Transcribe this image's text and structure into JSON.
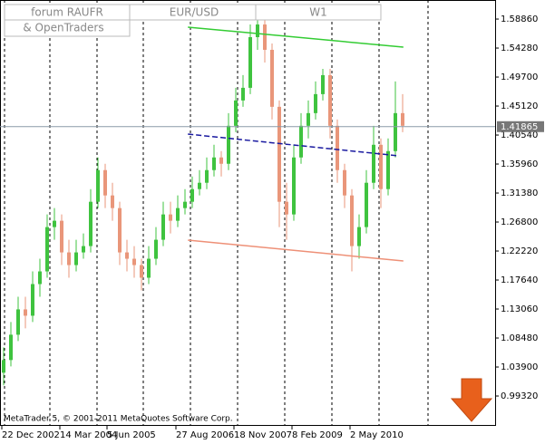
{
  "chart_data": {
    "type": "candlestick",
    "header_lines": [
      "forum RAUFR",
      "& OpenTraders"
    ],
    "symbol": "EUR/USD",
    "timeframe": "W1",
    "footer": "MetaTrader 5, © 2001-2011 MetaQuotes Software Corp.",
    "up_color": "#3fc33f",
    "down_color": "#e9967a",
    "open": [
      1.03,
      1.05,
      1.09,
      1.13,
      1.12,
      1.17,
      1.19,
      1.26,
      1.27,
      1.22,
      1.2,
      1.22,
      1.23,
      1.3,
      1.35,
      1.31,
      1.29,
      1.22,
      1.21,
      1.2,
      1.18,
      1.21,
      1.24,
      1.28,
      1.27,
      1.29,
      1.3,
      1.32,
      1.33,
      1.35,
      1.37,
      1.36,
      1.42,
      1.46,
      1.48,
      1.56,
      1.58,
      1.54,
      1.45,
      1.3,
      1.28,
      1.37,
      1.42,
      1.44,
      1.47,
      1.5,
      1.42,
      1.35,
      1.31,
      1.23,
      1.26,
      1.33,
      1.39,
      1.32,
      1.38,
      1.44
    ],
    "high": [
      1.07,
      1.11,
      1.15,
      1.15,
      1.19,
      1.21,
      1.28,
      1.29,
      1.28,
      1.24,
      1.24,
      1.25,
      1.32,
      1.37,
      1.36,
      1.33,
      1.3,
      1.24,
      1.23,
      1.21,
      1.23,
      1.26,
      1.3,
      1.3,
      1.31,
      1.32,
      1.34,
      1.35,
      1.37,
      1.39,
      1.38,
      1.44,
      1.48,
      1.5,
      1.58,
      1.6,
      1.59,
      1.55,
      1.46,
      1.33,
      1.39,
      1.44,
      1.46,
      1.49,
      1.51,
      1.51,
      1.43,
      1.36,
      1.32,
      1.28,
      1.35,
      1.42,
      1.4,
      1.4,
      1.49,
      1.47
    ],
    "low": [
      1.01,
      1.04,
      1.08,
      1.1,
      1.11,
      1.15,
      1.18,
      1.24,
      1.2,
      1.18,
      1.19,
      1.21,
      1.22,
      1.29,
      1.29,
      1.27,
      1.2,
      1.19,
      1.18,
      1.16,
      1.17,
      1.2,
      1.23,
      1.25,
      1.26,
      1.28,
      1.29,
      1.31,
      1.32,
      1.34,
      1.34,
      1.35,
      1.41,
      1.45,
      1.47,
      1.54,
      1.52,
      1.43,
      1.26,
      1.24,
      1.27,
      1.36,
      1.4,
      1.43,
      1.46,
      1.4,
      1.33,
      1.29,
      1.19,
      1.21,
      1.25,
      1.32,
      1.29,
      1.31,
      1.37,
      1.41
    ],
    "close": [
      1.05,
      1.09,
      1.13,
      1.12,
      1.17,
      1.19,
      1.26,
      1.27,
      1.22,
      1.2,
      1.22,
      1.23,
      1.3,
      1.35,
      1.31,
      1.29,
      1.22,
      1.21,
      1.2,
      1.18,
      1.21,
      1.24,
      1.28,
      1.27,
      1.29,
      1.3,
      1.32,
      1.33,
      1.35,
      1.37,
      1.36,
      1.42,
      1.46,
      1.48,
      1.56,
      1.58,
      1.54,
      1.45,
      1.3,
      1.28,
      1.37,
      1.42,
      1.44,
      1.47,
      1.5,
      1.42,
      1.35,
      1.31,
      1.23,
      1.26,
      1.33,
      1.39,
      1.32,
      1.38,
      1.44,
      1.42
    ],
    "xlim": [
      0,
      68.25
    ],
    "xticks": [
      {
        "value": 0,
        "label": "22 Dec 2002"
      },
      {
        "value": 8,
        "label": "14 Mar 2004"
      },
      {
        "value": 14.5,
        "label": "5 Jun 2005"
      },
      {
        "value": 24,
        "label": "27 Aug 2006"
      },
      {
        "value": 32,
        "label": "18 Nov 2007"
      },
      {
        "value": 40,
        "label": "8 Feb 2009"
      },
      {
        "value": 48,
        "label": "2 May 2010"
      }
    ],
    "ylim": [
      0.946,
      1.6187
    ],
    "yticks": [
      {
        "value": 1.5886,
        "label": "1.58860"
      },
      {
        "value": 1.5428,
        "label": "1.54280"
      },
      {
        "value": 1.497,
        "label": "1.49700"
      },
      {
        "value": 1.4512,
        "label": "1.45120"
      },
      {
        "value": 1.4054,
        "label": "1.40540"
      },
      {
        "value": 1.3596,
        "label": "1.35960"
      },
      {
        "value": 1.3138,
        "label": "1.31380"
      },
      {
        "value": 1.268,
        "label": "1.26800"
      },
      {
        "value": 1.2222,
        "label": "1.22220"
      },
      {
        "value": 1.1764,
        "label": "1.17640"
      },
      {
        "value": 1.1306,
        "label": "1.13060"
      },
      {
        "value": 1.0848,
        "label": "1.08480"
      },
      {
        "value": 1.039,
        "label": "1.03900"
      },
      {
        "value": 0.9932,
        "label": "0.99320"
      }
    ],
    "current_price": {
      "value": 1.41865,
      "label": "1.41865"
    },
    "trendlines": [
      {
        "color": "#33cc33",
        "dashed": false,
        "x": [
          25.9,
          55.6
        ],
        "y": [
          1.5758,
          1.5443
        ]
      },
      {
        "color": "#1a1aa0",
        "dashed": true,
        "x": [
          25.9,
          55.0
        ],
        "y": [
          1.4069,
          1.3725
        ]
      },
      {
        "color": "#ee9077",
        "dashed": false,
        "x": [
          25.9,
          55.6
        ],
        "y": [
          1.2394,
          1.2065
        ]
      }
    ]
  }
}
